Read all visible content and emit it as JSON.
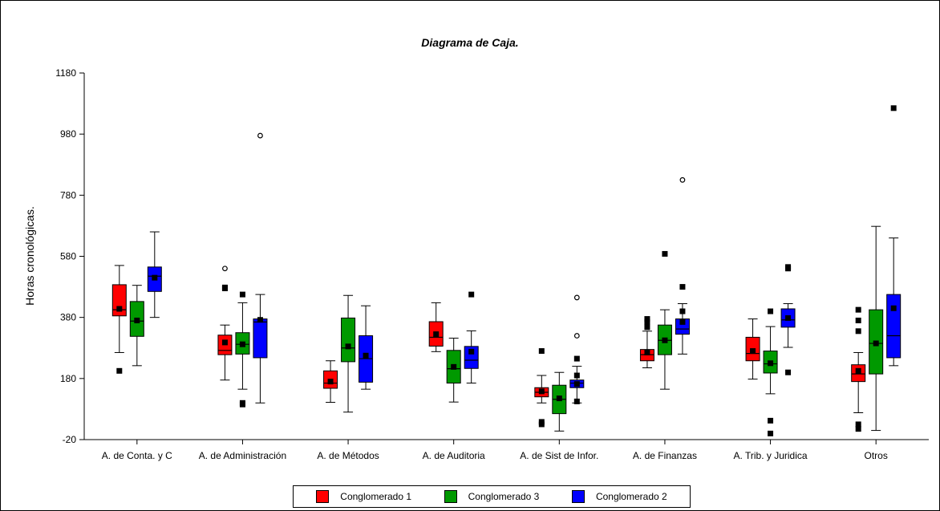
{
  "chart_data": {
    "type": "box",
    "title": "Diagrama de Caja.",
    "xlabel": "",
    "ylabel": "Horas cronológicas.",
    "ylim": [
      -20,
      1180
    ],
    "yticks": [
      -20,
      180,
      380,
      580,
      780,
      980,
      1180
    ],
    "legend_position": "bottom",
    "categories": [
      "A. de Conta. y C",
      "A. de Administración",
      "A. de Métodos",
      "A. de Auditoria",
      "A. de Sist de Infor.",
      "A. de Finanzas",
      "A. Trib. y Juridica",
      "Otros"
    ],
    "series": [
      {
        "name": "Conglomerado 1",
        "color": "#ff0000",
        "boxes": [
          {
            "whisker_low": 265,
            "q1": 385,
            "median": 405,
            "q3": 487,
            "whisker_high": 550,
            "mean": 408,
            "outliers": [
              {
                "value": 205,
                "marker": "square"
              }
            ]
          },
          {
            "whisker_low": 175,
            "q1": 258,
            "median": 272,
            "q3": 322,
            "whisker_high": 355,
            "mean": 298,
            "outliers": [
              {
                "value": 475,
                "marker": "square"
              },
              {
                "value": 478,
                "marker": "square"
              },
              {
                "value": 540,
                "marker": "circle"
              }
            ]
          },
          {
            "whisker_low": 102,
            "q1": 148,
            "median": 165,
            "q3": 205,
            "whisker_high": 238,
            "mean": 170,
            "outliers": []
          },
          {
            "whisker_low": 268,
            "q1": 286,
            "median": 315,
            "q3": 366,
            "whisker_high": 428,
            "mean": 325,
            "outliers": []
          },
          {
            "whisker_low": 100,
            "q1": 120,
            "median": 135,
            "q3": 150,
            "whisker_high": 190,
            "mean": 138,
            "outliers": [
              {
                "value": 30,
                "marker": "square"
              },
              {
                "value": 38,
                "marker": "square"
              },
              {
                "value": 270,
                "marker": "square"
              }
            ]
          },
          {
            "whisker_low": 215,
            "q1": 238,
            "median": 258,
            "q3": 275,
            "whisker_high": 335,
            "mean": 265,
            "outliers": [
              {
                "value": 348,
                "marker": "square"
              },
              {
                "value": 365,
                "marker": "square"
              },
              {
                "value": 375,
                "marker": "square"
              }
            ]
          },
          {
            "whisker_low": 178,
            "q1": 238,
            "median": 262,
            "q3": 315,
            "whisker_high": 375,
            "mean": 270,
            "outliers": []
          },
          {
            "whisker_low": 68,
            "q1": 170,
            "median": 195,
            "q3": 225,
            "whisker_high": 265,
            "mean": 205,
            "outliers": [
              {
                "value": 15,
                "marker": "square"
              },
              {
                "value": 30,
                "marker": "square"
              },
              {
                "value": 335,
                "marker": "square"
              },
              {
                "value": 370,
                "marker": "square"
              },
              {
                "value": 405,
                "marker": "square"
              }
            ]
          }
        ]
      },
      {
        "name": "Conglomerado 3",
        "color": "#009900",
        "boxes": [
          {
            "whisker_low": 222,
            "q1": 318,
            "median": 368,
            "q3": 432,
            "whisker_high": 485,
            "mean": 370,
            "outliers": []
          },
          {
            "whisker_low": 145,
            "q1": 260,
            "median": 292,
            "q3": 330,
            "whisker_high": 428,
            "mean": 292,
            "outliers": [
              {
                "value": 95,
                "marker": "square"
              },
              {
                "value": 100,
                "marker": "square"
              },
              {
                "value": 455,
                "marker": "square"
              }
            ]
          },
          {
            "whisker_low": 70,
            "q1": 235,
            "median": 280,
            "q3": 378,
            "whisker_high": 452,
            "mean": 285,
            "outliers": []
          },
          {
            "whisker_low": 103,
            "q1": 165,
            "median": 212,
            "q3": 272,
            "whisker_high": 312,
            "mean": 218,
            "outliers": []
          },
          {
            "whisker_low": 8,
            "q1": 65,
            "median": 112,
            "q3": 158,
            "whisker_high": 200,
            "mean": 115,
            "outliers": []
          },
          {
            "whisker_low": 145,
            "q1": 258,
            "median": 305,
            "q3": 355,
            "whisker_high": 405,
            "mean": 305,
            "outliers": [
              {
                "value": 588,
                "marker": "square"
              }
            ]
          },
          {
            "whisker_low": 130,
            "q1": 198,
            "median": 228,
            "q3": 270,
            "whisker_high": 350,
            "mean": 230,
            "outliers": [
              {
                "value": 0,
                "marker": "square"
              },
              {
                "value": 42,
                "marker": "square"
              },
              {
                "value": 400,
                "marker": "square"
              }
            ]
          },
          {
            "whisker_low": 10,
            "q1": 195,
            "median": 295,
            "q3": 405,
            "whisker_high": 678,
            "mean": 295,
            "outliers": []
          }
        ]
      },
      {
        "name": "Conglomerado 2",
        "color": "#0000ff",
        "boxes": [
          {
            "whisker_low": 380,
            "q1": 465,
            "median": 515,
            "q3": 545,
            "whisker_high": 660,
            "mean": 510,
            "outliers": []
          },
          {
            "whisker_low": 100,
            "q1": 248,
            "median": 365,
            "q3": 375,
            "whisker_high": 455,
            "mean": 372,
            "outliers": [
              {
                "value": 975,
                "marker": "circle"
              }
            ]
          },
          {
            "whisker_low": 145,
            "q1": 168,
            "median": 245,
            "q3": 320,
            "whisker_high": 418,
            "mean": 255,
            "outliers": []
          },
          {
            "whisker_low": 165,
            "q1": 213,
            "median": 240,
            "q3": 285,
            "whisker_high": 336,
            "mean": 268,
            "outliers": [
              {
                "value": 455,
                "marker": "square"
              }
            ]
          },
          {
            "whisker_low": 100,
            "q1": 150,
            "median": 165,
            "q3": 175,
            "whisker_high": 220,
            "mean": 162,
            "outliers": [
              {
                "value": 105,
                "marker": "square"
              },
              {
                "value": 190,
                "marker": "square"
              },
              {
                "value": 245,
                "marker": "square"
              },
              {
                "value": 320,
                "marker": "circle"
              },
              {
                "value": 445,
                "marker": "circle"
              }
            ]
          },
          {
            "whisker_low": 260,
            "q1": 325,
            "median": 342,
            "q3": 375,
            "whisker_high": 425,
            "mean": 365,
            "outliers": [
              {
                "value": 400,
                "marker": "square"
              },
              {
                "value": 480,
                "marker": "square"
              },
              {
                "value": 830,
                "marker": "circle"
              }
            ]
          },
          {
            "whisker_low": 282,
            "q1": 348,
            "median": 372,
            "q3": 408,
            "whisker_high": 425,
            "mean": 378,
            "outliers": [
              {
                "value": 200,
                "marker": "square"
              },
              {
                "value": 540,
                "marker": "square"
              },
              {
                "value": 545,
                "marker": "square"
              }
            ]
          },
          {
            "whisker_low": 222,
            "q1": 248,
            "median": 320,
            "q3": 455,
            "whisker_high": 640,
            "mean": 410,
            "outliers": [
              {
                "value": 1065,
                "marker": "square"
              }
            ]
          }
        ]
      }
    ]
  }
}
